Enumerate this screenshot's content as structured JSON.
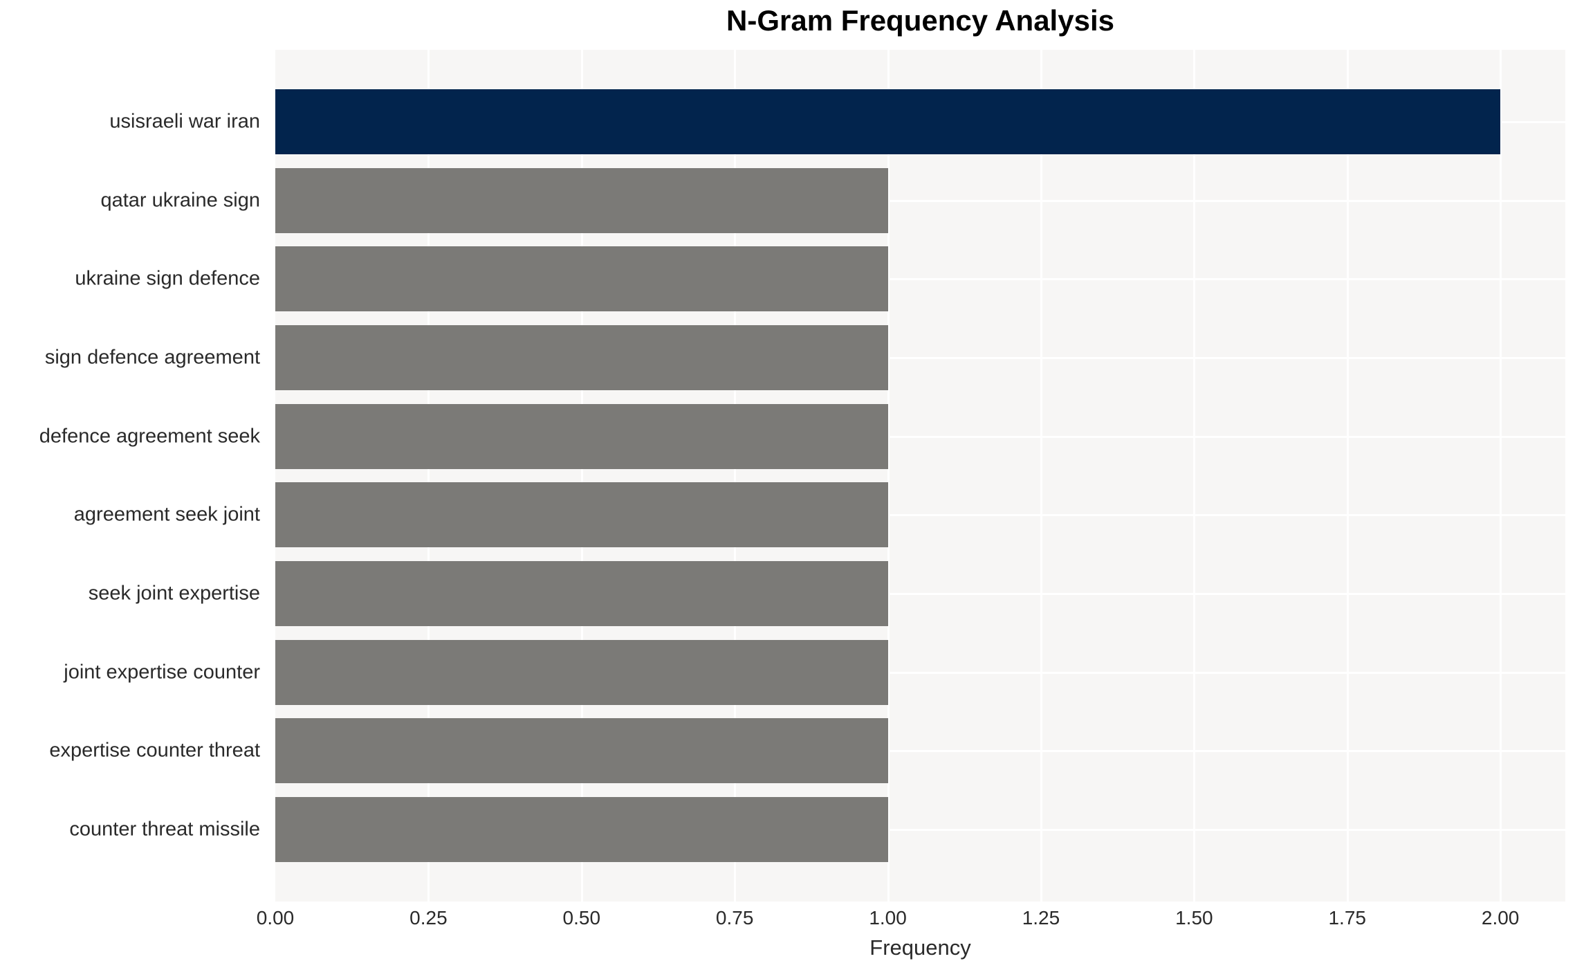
{
  "chart_data": {
    "type": "bar",
    "orientation": "horizontal",
    "title": "N-Gram Frequency Analysis",
    "xlabel": "Frequency",
    "ylabel": "",
    "categories": [
      "usisraeli war iran",
      "qatar ukraine sign",
      "ukraine sign defence",
      "sign defence agreement",
      "defence agreement seek",
      "agreement seek joint",
      "seek joint expertise",
      "joint expertise counter",
      "expertise counter threat",
      "counter threat missile"
    ],
    "values": [
      2.0,
      1.0,
      1.0,
      1.0,
      1.0,
      1.0,
      1.0,
      1.0,
      1.0,
      1.0
    ],
    "bar_colors": [
      "#02244d",
      "#7b7a77",
      "#7b7a77",
      "#7b7a77",
      "#7b7a77",
      "#7b7a77",
      "#7b7a77",
      "#7b7a77",
      "#7b7a77",
      "#7b7a77"
    ],
    "xticks": [
      "0.00",
      "0.25",
      "0.50",
      "0.75",
      "1.00",
      "1.25",
      "1.50",
      "1.75",
      "2.00"
    ],
    "xtick_values": [
      0,
      0.25,
      0.5,
      0.75,
      1.0,
      1.25,
      1.5,
      1.75,
      2.0
    ],
    "xlim": [
      0,
      2.106
    ],
    "grid": true,
    "legend": "none",
    "colors": {
      "bar_highlight": "#02244d",
      "bar_default": "#7b7a77",
      "plot_background": "#f7f6f5",
      "grid_line": "#ffffff",
      "figure_background": "#ffffff",
      "tick_text": "#2a2a2a",
      "title_text": "#000000"
    }
  }
}
